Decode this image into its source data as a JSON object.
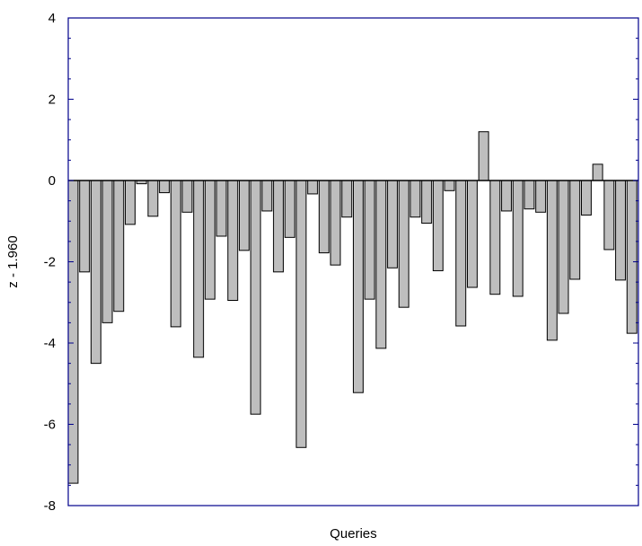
{
  "chart_data": {
    "type": "bar",
    "title": "",
    "xlabel": "Queries",
    "ylabel": "z - 1.960",
    "ylim": [
      -8,
      4
    ],
    "yticks": [
      4,
      2,
      0,
      -2,
      -4,
      -6,
      -8
    ],
    "ytick_labels": [
      "4",
      "2",
      "0",
      "-2",
      "-4",
      "-6",
      "-8"
    ],
    "grid": false,
    "values": [
      -7.45,
      -2.25,
      -4.5,
      -3.5,
      -3.22,
      -1.08,
      -0.08,
      -0.88,
      -0.3,
      -3.6,
      -0.78,
      -4.35,
      -2.92,
      -1.37,
      -2.95,
      -1.72,
      -5.75,
      -0.75,
      -2.25,
      -1.4,
      -6.57,
      -0.33,
      -1.78,
      -2.08,
      -0.9,
      -5.22,
      -2.92,
      -4.13,
      -2.15,
      -3.12,
      -0.9,
      -1.05,
      -2.22,
      -0.25,
      -3.58,
      -2.63,
      1.2,
      -2.8,
      -0.75,
      -2.85,
      -0.7,
      -0.78,
      -3.93,
      -3.27,
      -2.43,
      -0.85,
      0.4,
      -1.7,
      -2.45,
      -3.76
    ],
    "colors": {
      "bar_fill": "#bebebe",
      "bar_stroke": "#000000",
      "axis": "#00008b",
      "zero_line": "#000000"
    }
  }
}
